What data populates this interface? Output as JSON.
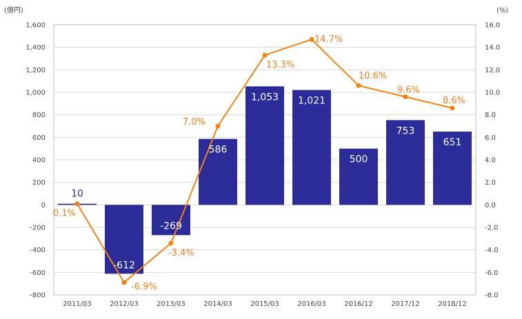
{
  "chart_data": {
    "type": "bar",
    "categories": [
      "2011/03",
      "2012/03",
      "2013/03",
      "2014/03",
      "2015/03",
      "2016/03",
      "2016/12",
      "2017/12",
      "2018/12"
    ],
    "series": [
      {
        "type": "bar",
        "axis": "left",
        "values": [
          10,
          -612,
          -269,
          586,
          1053,
          1021,
          500,
          753,
          651
        ],
        "labels": [
          "10",
          "-612",
          "-269",
          "586",
          "1,053",
          "1,021",
          "500",
          "753",
          "651"
        ],
        "color": "#2b2b99"
      },
      {
        "type": "line",
        "axis": "right",
        "values": [
          0.1,
          -6.9,
          -3.4,
          7.0,
          13.3,
          14.7,
          10.6,
          9.6,
          8.6
        ],
        "labels": [
          "0.1%",
          "-6.9%",
          "-3.4%",
          "7.0%",
          "13.3%",
          "14.7%",
          "10.6%",
          "9.6%",
          "8.6%"
        ],
        "color": "#f5820f"
      }
    ],
    "left_axis": {
      "unit": "(億円)",
      "ylim": [
        -800,
        1600
      ],
      "ticks": [
        1600,
        1400,
        1200,
        1000,
        800,
        600,
        400,
        200,
        0,
        -200,
        -400,
        -600,
        -800
      ],
      "tick_labels": [
        "1,600",
        "1,400",
        "1,200",
        "1,000",
        "800",
        "600",
        "400",
        "200",
        "0",
        "-200",
        "-400",
        "-600",
        "-800"
      ]
    },
    "right_axis": {
      "unit": "(%)",
      "ylim": [
        -8.0,
        16.0
      ],
      "ticks": [
        16,
        14,
        12,
        10,
        8,
        6,
        4,
        2,
        0,
        -2,
        -4,
        -6,
        -8
      ],
      "tick_labels": [
        "16.0",
        "14.0",
        "12.0",
        "10.0",
        "8.0",
        "6.0",
        "4.0",
        "2.0",
        "0.0",
        "-2.0",
        "-4.0",
        "-6.0",
        "-8.0"
      ]
    },
    "grid": true,
    "legend": "none",
    "title": "",
    "xlabel": "",
    "ylabel": ""
  }
}
